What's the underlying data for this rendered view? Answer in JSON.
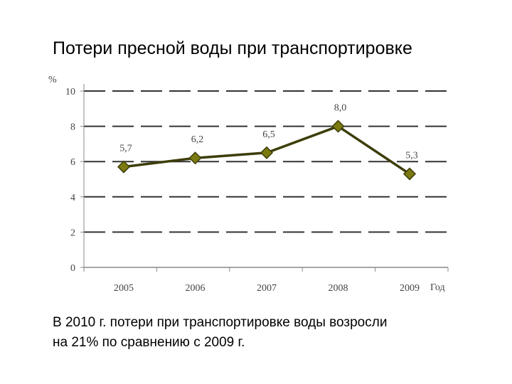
{
  "title": "Потери пресной воды при транспортировке",
  "caption": {
    "line1": "В 2010 г. потери при транспортировке воды возросли",
    "line2": "на 21% по  сравнению с 2009 г."
  },
  "chart_data": {
    "type": "line",
    "title": "",
    "ylabel": "%",
    "xlabel": "Год",
    "categories": [
      "2005",
      "2006",
      "2007",
      "2008",
      "2009"
    ],
    "values": [
      5.7,
      6.2,
      6.5,
      8.0,
      5.3
    ],
    "data_labels": [
      "5,7",
      "6,2",
      "6,5",
      "8,0",
      "5,3"
    ],
    "ylim": [
      0,
      10
    ],
    "yticks": [
      0,
      2,
      4,
      6,
      8,
      10
    ],
    "grid": true,
    "line_color": "#3d3d0a",
    "marker_color": "#7a7a10",
    "grid_color": "#333333"
  }
}
